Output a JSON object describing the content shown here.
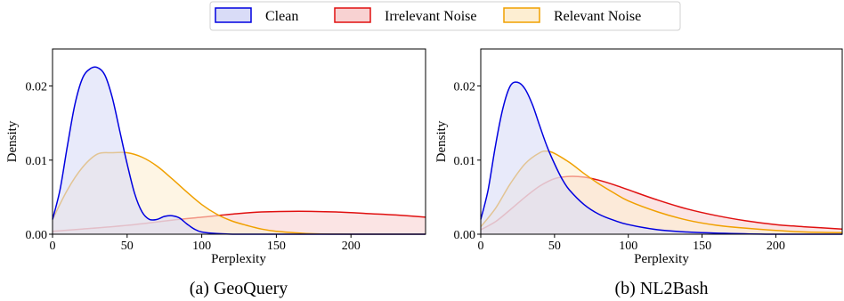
{
  "legend": [
    {
      "label": "Clean",
      "color": "#0000e0",
      "fill": "#d9dcf7"
    },
    {
      "label": "Irrelevant Noise",
      "color": "#e01010",
      "fill": "#f8d2d2"
    },
    {
      "label": "Relevant Noise",
      "color": "#f0a000",
      "fill": "#fdeed2"
    }
  ],
  "chart_data": [
    {
      "type": "area",
      "caption": "(a) GeoQuery",
      "xlabel": "Perplexity",
      "ylabel": "Density",
      "xlim": [
        0,
        250
      ],
      "ylim": [
        0,
        0.025
      ],
      "xticks": [
        0,
        50,
        100,
        150,
        200
      ],
      "xtick_labels": [
        "0",
        "50",
        "100",
        "150",
        "200"
      ],
      "yticks": [
        0.0,
        0.01,
        0.02
      ],
      "ytick_labels": [
        "0.00",
        "0.01",
        "0.02"
      ],
      "grid": false,
      "series": [
        {
          "name": "Irrelevant Noise",
          "color": "#e01010",
          "fill": "#f8d2d2",
          "x": [
            0,
            20,
            50,
            80,
            100,
            120,
            140,
            165,
            190,
            210,
            230,
            250
          ],
          "y": [
            0.0004,
            0.0007,
            0.0012,
            0.0019,
            0.0023,
            0.0027,
            0.003,
            0.0031,
            0.003,
            0.0028,
            0.0026,
            0.0023
          ]
        },
        {
          "name": "Relevant Noise",
          "color": "#f0a000",
          "fill": "#fdeed2",
          "x": [
            0,
            10,
            20,
            30,
            40,
            50,
            60,
            70,
            80,
            90,
            100,
            110,
            120,
            130,
            140,
            150,
            170,
            200,
            250
          ],
          "y": [
            0.002,
            0.006,
            0.009,
            0.0108,
            0.011,
            0.011,
            0.0104,
            0.0092,
            0.0075,
            0.0057,
            0.004,
            0.0027,
            0.0018,
            0.0012,
            0.0007,
            0.0004,
            0.0001,
            0.0,
            0.0
          ]
        },
        {
          "name": "Clean",
          "color": "#0000e0",
          "fill": "#d9dcf7",
          "x": [
            0,
            5,
            10,
            15,
            20,
            25,
            30,
            35,
            40,
            45,
            50,
            55,
            60,
            65,
            70,
            75,
            80,
            85,
            90,
            95,
            100,
            110,
            125,
            150,
            250
          ],
          "y": [
            0.002,
            0.006,
            0.012,
            0.0175,
            0.021,
            0.0223,
            0.0225,
            0.0215,
            0.0185,
            0.014,
            0.0095,
            0.0055,
            0.003,
            0.002,
            0.002,
            0.0024,
            0.0025,
            0.0022,
            0.0014,
            0.0007,
            0.0003,
            0.0001,
            0.0,
            0.0,
            0.0
          ]
        }
      ]
    },
    {
      "type": "area",
      "caption": "(b) NL2Bash",
      "xlabel": "Perplexity",
      "ylabel": "Density",
      "xlim": [
        0,
        245
      ],
      "ylim": [
        0,
        0.025
      ],
      "xticks": [
        0,
        50,
        100,
        150,
        200
      ],
      "xtick_labels": [
        "0",
        "50",
        "100",
        "150",
        "200"
      ],
      "yticks": [
        0.0,
        0.01,
        0.02
      ],
      "ytick_labels": [
        "0.00",
        "0.01",
        "0.02"
      ],
      "grid": false,
      "series": [
        {
          "name": "Irrelevant Noise",
          "color": "#e01010",
          "fill": "#f8d2d2",
          "x": [
            0,
            10,
            20,
            30,
            40,
            50,
            60,
            70,
            80,
            90,
            100,
            120,
            140,
            160,
            180,
            200,
            220,
            245
          ],
          "y": [
            0.0006,
            0.0017,
            0.0033,
            0.005,
            0.0065,
            0.0075,
            0.0078,
            0.0077,
            0.0073,
            0.0067,
            0.006,
            0.0046,
            0.0034,
            0.0025,
            0.0018,
            0.0013,
            0.001,
            0.0007
          ]
        },
        {
          "name": "Relevant Noise",
          "color": "#f0a000",
          "fill": "#fdeed2",
          "x": [
            0,
            10,
            20,
            30,
            40,
            45,
            50,
            60,
            70,
            80,
            90,
            100,
            120,
            140,
            160,
            180,
            200,
            220,
            245
          ],
          "y": [
            0.001,
            0.0035,
            0.0068,
            0.0095,
            0.011,
            0.0112,
            0.0109,
            0.0097,
            0.0082,
            0.0068,
            0.0056,
            0.0045,
            0.003,
            0.0019,
            0.0012,
            0.0008,
            0.0005,
            0.0003,
            0.0002
          ]
        },
        {
          "name": "Clean",
          "color": "#0000e0",
          "fill": "#d9dcf7",
          "x": [
            0,
            5,
            10,
            15,
            20,
            25,
            30,
            35,
            40,
            45,
            50,
            55,
            60,
            70,
            80,
            90,
            100,
            120,
            140,
            170,
            200,
            245
          ],
          "y": [
            0.002,
            0.006,
            0.012,
            0.017,
            0.02,
            0.0205,
            0.0196,
            0.0175,
            0.0146,
            0.0118,
            0.0095,
            0.0075,
            0.006,
            0.004,
            0.0027,
            0.0019,
            0.0013,
            0.0006,
            0.0003,
            0.0001,
            0.0,
            0.0
          ]
        }
      ]
    }
  ]
}
